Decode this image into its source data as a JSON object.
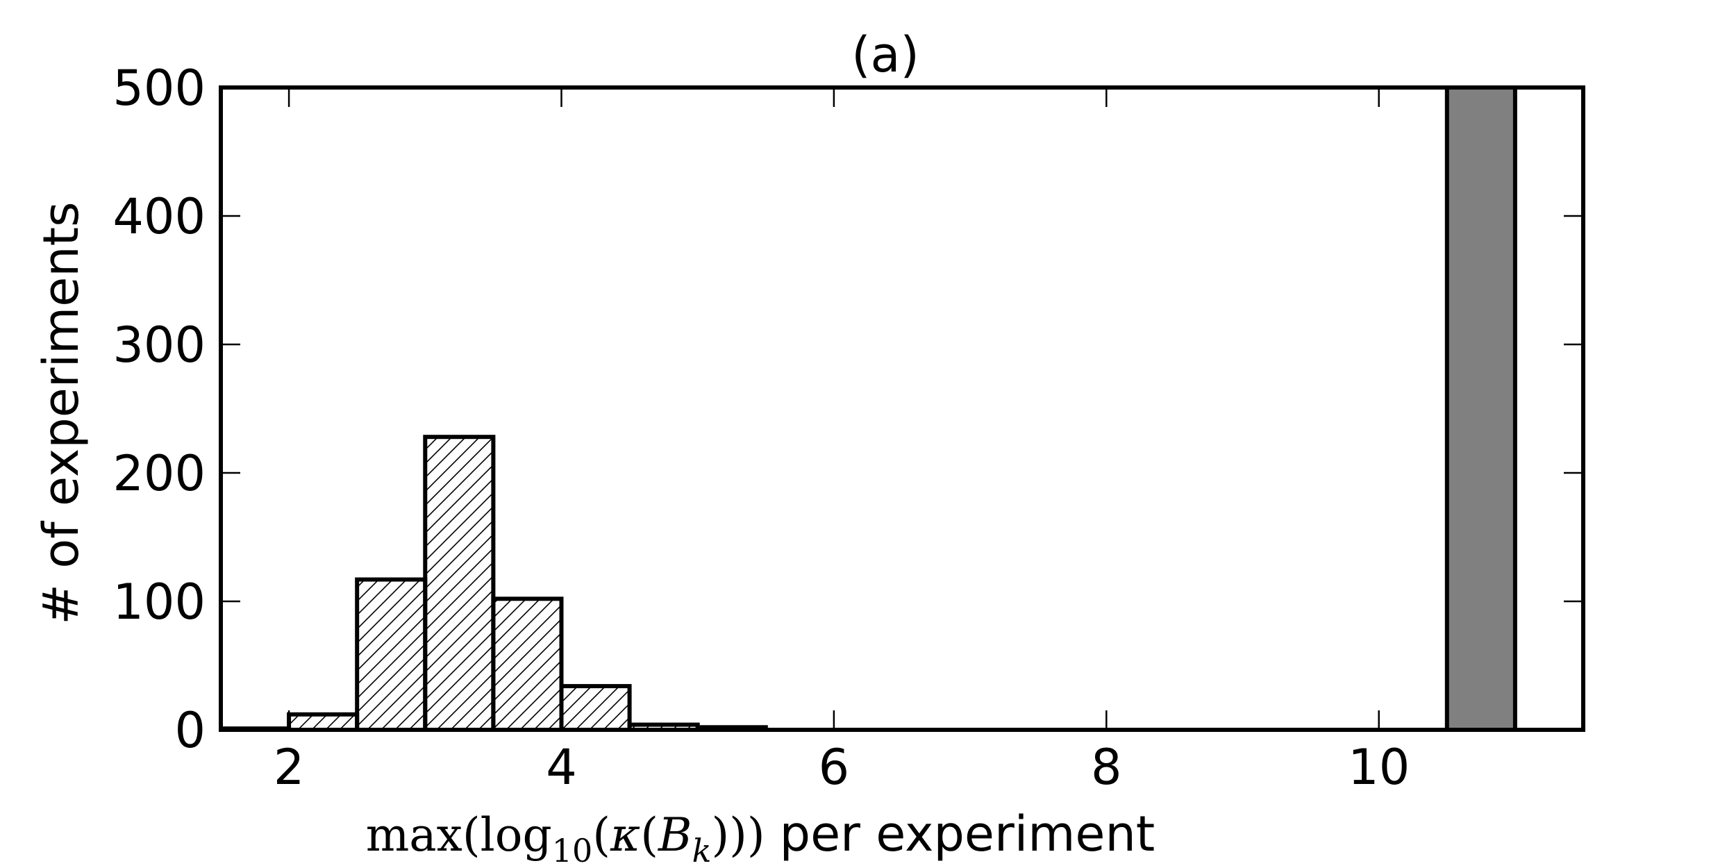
{
  "chart_data": {
    "type": "bar",
    "title": "(a)",
    "ylabel": "# of experiments",
    "xlabel": {
      "math": "max(log10(κ(Bk)))",
      "text": "per experiment"
    },
    "xlim": [
      1.5,
      11.5
    ],
    "ylim": [
      0,
      500
    ],
    "xticks": [
      2,
      4,
      6,
      8,
      10
    ],
    "yticks": [
      0,
      100,
      200,
      300,
      400,
      500
    ],
    "grid": false,
    "series": [
      {
        "style": "hatched",
        "color": "#ffffff",
        "bins": [
          {
            "x0": 1.5,
            "x1": 2.0,
            "value": 1
          },
          {
            "x0": 2.0,
            "x1": 2.5,
            "value": 12
          },
          {
            "x0": 2.5,
            "x1": 3.0,
            "value": 117
          },
          {
            "x0": 3.0,
            "x1": 3.5,
            "value": 228
          },
          {
            "x0": 3.5,
            "x1": 4.0,
            "value": 102
          },
          {
            "x0": 4.0,
            "x1": 4.5,
            "value": 34
          },
          {
            "x0": 4.5,
            "x1": 5.0,
            "value": 4
          },
          {
            "x0": 5.0,
            "x1": 5.5,
            "value": 2
          }
        ]
      },
      {
        "style": "solid",
        "color": "#808080",
        "bins": [
          {
            "x0": 10.5,
            "x1": 11.0,
            "value": 500
          }
        ]
      }
    ]
  }
}
